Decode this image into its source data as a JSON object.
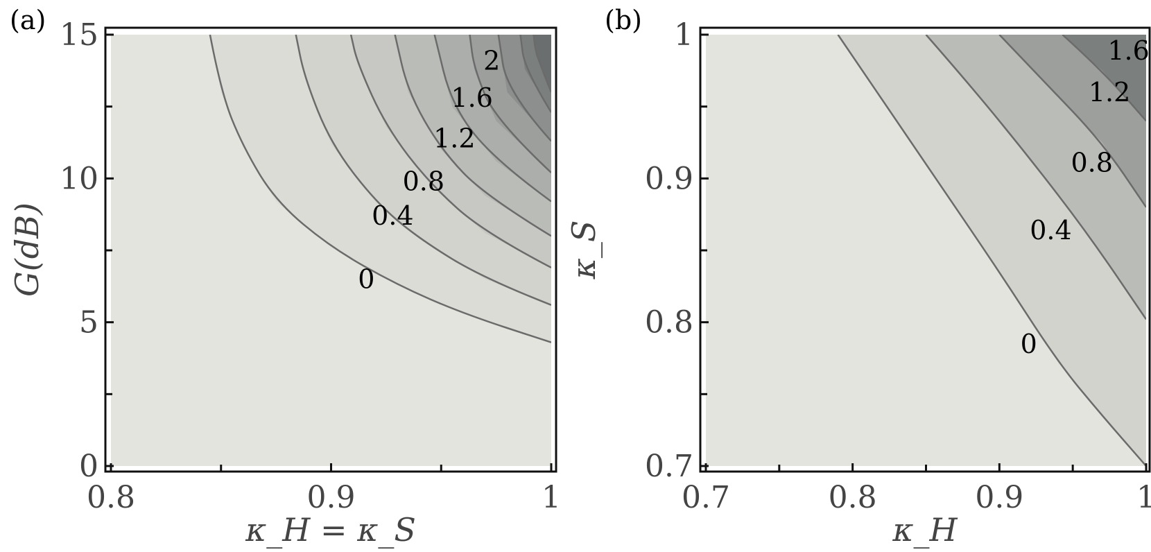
{
  "chart_data": [
    {
      "type": "contour",
      "panel_label": "(a)",
      "xlabel": "κ_H = κ_S",
      "ylabel": "G(dB)",
      "xlim": [
        0.8,
        1.0
      ],
      "ylim": [
        0,
        15
      ],
      "x_ticks": [
        0.8,
        0.9,
        1.0
      ],
      "x_tick_labels": [
        "0.8",
        "0.9",
        "1"
      ],
      "y_ticks": [
        0,
        5,
        10,
        15
      ],
      "y_tick_labels": [
        "0",
        "5",
        "10",
        "15"
      ],
      "contour_levels": [
        0,
        0.2,
        0.4,
        0.6,
        0.8,
        1.0,
        1.2,
        1.4,
        1.6,
        1.8,
        2.0
      ],
      "level_labels": [
        {
          "text": "0",
          "level": 0,
          "x": 0.916,
          "y": 6.5
        },
        {
          "text": "0.4",
          "level": 0.4,
          "x": 0.928,
          "y": 8.7
        },
        {
          "text": "0.8",
          "level": 0.8,
          "x": 0.942,
          "y": 9.9
        },
        {
          "text": "1.2",
          "level": 1.2,
          "x": 0.956,
          "y": 11.4
        },
        {
          "text": "1.6",
          "level": 1.6,
          "x": 0.964,
          "y": 12.8
        },
        {
          "text": "2",
          "level": 2.0,
          "x": 0.973,
          "y": 14.1
        }
      ],
      "contour_lines": [
        {
          "level": 0,
          "points": [
            [
              0.845,
              15
            ],
            [
              0.85,
              13
            ],
            [
              0.86,
              11.1
            ],
            [
              0.875,
              9.2
            ],
            [
              0.9,
              7.6
            ],
            [
              0.93,
              6.3
            ],
            [
              0.96,
              5.3
            ],
            [
              1.0,
              4.3
            ]
          ]
        },
        {
          "level": 0.2,
          "points": [
            [
              1.0,
              5.6
            ],
            [
              0.97,
              6.5
            ],
            [
              0.94,
              7.9
            ],
            [
              0.92,
              9.2
            ],
            [
              0.9,
              11.2
            ],
            [
              0.888,
              13.5
            ],
            [
              0.884,
              15
            ]
          ]
        },
        {
          "level": 0.4,
          "points": [
            [
              1.0,
              6.9
            ],
            [
              0.97,
              8.1
            ],
            [
              0.945,
              9.8
            ],
            [
              0.925,
              11.8
            ],
            [
              0.912,
              14
            ],
            [
              0.909,
              15
            ]
          ]
        },
        {
          "level": 0.6,
          "points": [
            [
              1.0,
              8.0
            ],
            [
              0.97,
              9.4
            ],
            [
              0.95,
              11.0
            ],
            [
              0.935,
              13.0
            ],
            [
              0.929,
              15
            ]
          ]
        },
        {
          "level": 0.8,
          "points": [
            [
              1.0,
              9.2
            ],
            [
              0.975,
              10.6
            ],
            [
              0.955,
              12.5
            ],
            [
              0.947,
              15
            ]
          ]
        },
        {
          "level": 1.0,
          "points": [
            [
              1.0,
              10.2
            ],
            [
              0.975,
              12.0
            ],
            [
              0.965,
              13.8
            ],
            [
              0.963,
              15
            ]
          ]
        },
        {
          "level": 1.2,
          "points": [
            [
              1.0,
              11.3
            ],
            [
              0.98,
              13.0
            ],
            [
              0.976,
              15
            ]
          ]
        },
        {
          "level": 1.4,
          "points": [
            [
              1.0,
              12.3
            ],
            [
              0.988,
              13.8
            ],
            [
              0.986,
              15
            ]
          ]
        },
        {
          "level": 1.6,
          "points": [
            [
              1.0,
              13.0
            ],
            [
              0.993,
              14.3
            ],
            [
              0.992,
              15
            ]
          ]
        }
      ]
    },
    {
      "type": "contour",
      "panel_label": "(b)",
      "xlabel": "κ_H",
      "ylabel": "κ_S",
      "xlim": [
        0.7,
        1.0
      ],
      "ylim": [
        0.7,
        1.0
      ],
      "x_ticks": [
        0.7,
        0.8,
        0.9,
        1.0
      ],
      "x_tick_labels": [
        "0.7",
        "0.8",
        "0.9",
        "1"
      ],
      "y_ticks": [
        0.7,
        0.8,
        0.9,
        1.0
      ],
      "y_tick_labels": [
        "0.7",
        "0.8",
        "0.9",
        "1"
      ],
      "contour_levels": [
        0,
        0.4,
        0.8,
        1.2,
        1.6
      ],
      "level_labels": [
        {
          "text": "0",
          "level": 0,
          "x": 0.92,
          "y": 0.785
        },
        {
          "text": "0.4",
          "level": 0.4,
          "x": 0.935,
          "y": 0.864
        },
        {
          "text": "0.8",
          "level": 0.8,
          "x": 0.963,
          "y": 0.911
        },
        {
          "text": "1.2",
          "level": 1.2,
          "x": 0.975,
          "y": 0.96
        },
        {
          "text": "1.6",
          "level": 1.6,
          "x": 0.988,
          "y": 0.989
        }
      ],
      "contour_lines": [
        {
          "level": 0,
          "points": [
            [
              0.79,
              1.0
            ],
            [
              0.82,
              0.955
            ],
            [
              0.86,
              0.895
            ],
            [
              0.9,
              0.835
            ],
            [
              0.94,
              0.772
            ],
            [
              0.97,
              0.735
            ],
            [
              1.0,
              0.7
            ]
          ]
        },
        {
          "level": 0.4,
          "points": [
            [
              0.85,
              1.0
            ],
            [
              0.88,
              0.965
            ],
            [
              0.92,
              0.915
            ],
            [
              0.96,
              0.862
            ],
            [
              1.0,
              0.802
            ]
          ]
        },
        {
          "level": 0.8,
          "points": [
            [
              0.9,
              1.0
            ],
            [
              0.93,
              0.968
            ],
            [
              0.97,
              0.925
            ],
            [
              1.0,
              0.88
            ]
          ]
        },
        {
          "level": 1.2,
          "points": [
            [
              0.943,
              1.0
            ],
            [
              0.97,
              0.975
            ],
            [
              1.0,
              0.94
            ]
          ]
        }
      ]
    }
  ]
}
